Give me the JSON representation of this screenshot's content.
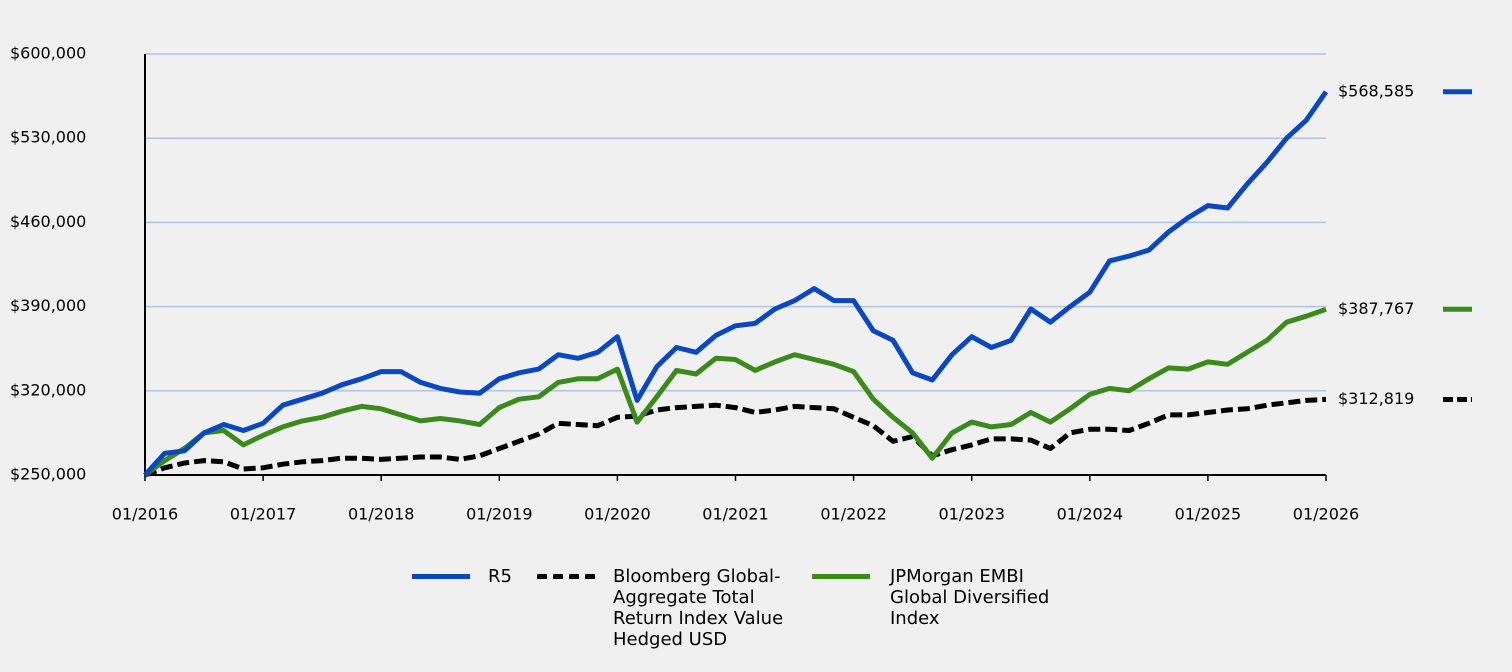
{
  "chart_data": {
    "type": "line",
    "categories": [
      "01/2016",
      null,
      null,
      null,
      null,
      null,
      "01/2017",
      null,
      null,
      null,
      null,
      null,
      "01/2018",
      null,
      null,
      null,
      null,
      null,
      "01/2019",
      null,
      null,
      null,
      null,
      null,
      "01/2020",
      null,
      null,
      null,
      null,
      null,
      "01/2021",
      null,
      null,
      null,
      null,
      null,
      "01/2022",
      null,
      null,
      null,
      null,
      null,
      "01/2023",
      null,
      null,
      null,
      null,
      null,
      "01/2024",
      null,
      null,
      null,
      null,
      null,
      "01/2025",
      null,
      null,
      null,
      null,
      null,
      "01/2026"
    ],
    "series": [
      {
        "name": "R5",
        "color": "#0a47c2",
        "dash": false,
        "end_label": "$568,585",
        "values": [
          250000,
          268000,
          270000,
          285000,
          292000,
          287000,
          293000,
          308000,
          313000,
          318000,
          325000,
          330000,
          336000,
          336000,
          327000,
          322000,
          319000,
          318000,
          330000,
          335000,
          338000,
          350000,
          347000,
          352000,
          365000,
          312000,
          340000,
          356000,
          352000,
          366000,
          374000,
          376000,
          388000,
          395000,
          405000,
          395000,
          395000,
          370000,
          362000,
          335000,
          329000,
          350000,
          365000,
          356000,
          362000,
          388000,
          377000,
          390000,
          402000,
          428000,
          432000,
          437000,
          452000,
          464000,
          474000,
          472000,
          492000,
          510000,
          530000,
          545000,
          568585
        ]
      },
      {
        "name": "Bloomberg Global-Aggregate Total Return Index Value Hedged USD",
        "color": "#000000",
        "dash": true,
        "end_label": "$312,819",
        "values": [
          250000,
          256000,
          260000,
          262000,
          261000,
          255000,
          256000,
          259000,
          261000,
          262000,
          264000,
          264000,
          263000,
          264000,
          265000,
          265000,
          263000,
          266000,
          272000,
          278000,
          284000,
          293000,
          292000,
          291000,
          298000,
          299000,
          304000,
          306000,
          307000,
          308000,
          306000,
          302000,
          304000,
          307000,
          306000,
          305000,
          298000,
          291000,
          278000,
          282000,
          266000,
          271000,
          275000,
          280000,
          280000,
          279000,
          272000,
          285000,
          288000,
          288000,
          287000,
          293000,
          300000,
          300000,
          302000,
          304000,
          305000,
          308000,
          310000,
          312000,
          312819
        ]
      },
      {
        "name": "JPMorgan EMBI Global Diversified Index",
        "color": "#3a8a1c",
        "dash": false,
        "end_label": "$387,767",
        "values": [
          250000,
          262000,
          272000,
          285000,
          287000,
          275000,
          283000,
          290000,
          295000,
          298000,
          303000,
          307000,
          305000,
          300000,
          295000,
          297000,
          295000,
          292000,
          306000,
          313000,
          315000,
          327000,
          330000,
          330000,
          338000,
          294000,
          315000,
          337000,
          334000,
          347000,
          346000,
          337000,
          344000,
          350000,
          346000,
          342000,
          336000,
          313000,
          298000,
          285000,
          264000,
          285000,
          294000,
          290000,
          292000,
          302000,
          294000,
          305000,
          317000,
          322000,
          320000,
          330000,
          339000,
          338000,
          344000,
          342000,
          352000,
          362000,
          377000,
          382000,
          387767
        ]
      }
    ],
    "ylim": [
      250000,
      600000
    ],
    "yticks": [
      {
        "value": 250000,
        "label": "$250,000"
      },
      {
        "value": 320000,
        "label": "$320,000"
      },
      {
        "value": 390000,
        "label": "$390,000"
      },
      {
        "value": 460000,
        "label": "$460,000"
      },
      {
        "value": 530000,
        "label": "$530,000"
      },
      {
        "value": 600000,
        "label": "$600,000"
      }
    ],
    "grid": true,
    "grid_color": "#a9c4ea"
  }
}
